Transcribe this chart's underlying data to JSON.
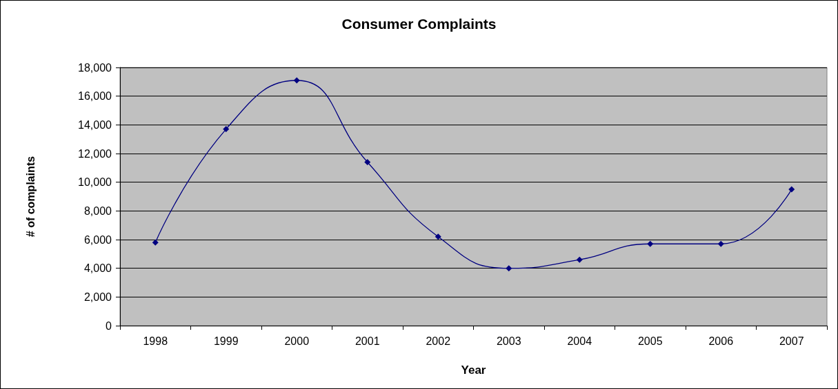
{
  "chart_data": {
    "type": "line",
    "title": "Consumer Complaints",
    "xlabel": "Year",
    "ylabel": "# of complaints",
    "categories": [
      "1998",
      "1999",
      "2000",
      "2001",
      "2002",
      "2003",
      "2004",
      "2005",
      "2006",
      "2007"
    ],
    "values": [
      5800,
      13700,
      17100,
      11400,
      6200,
      4000,
      4600,
      5700,
      5700,
      9500
    ],
    "color": "#000080",
    "marker": "diamond",
    "line_style": "solid",
    "ylim": [
      0,
      18000
    ],
    "yticks": [
      0,
      {
        "value": 2000,
        "label": "2,000"
      },
      {
        "value": 4000,
        "label": "4,000"
      },
      {
        "value": 6000,
        "label": "6,000"
      },
      {
        "value": 8000,
        "label": "8,000"
      },
      {
        "value": 10000,
        "label": "10,000"
      },
      {
        "value": 12000,
        "label": "12,000"
      },
      {
        "value": 14000,
        "label": "14,000"
      },
      {
        "value": 16000,
        "label": "16,000"
      },
      {
        "value": 18000,
        "label": "18,000"
      }
    ],
    "grid": "y"
  }
}
